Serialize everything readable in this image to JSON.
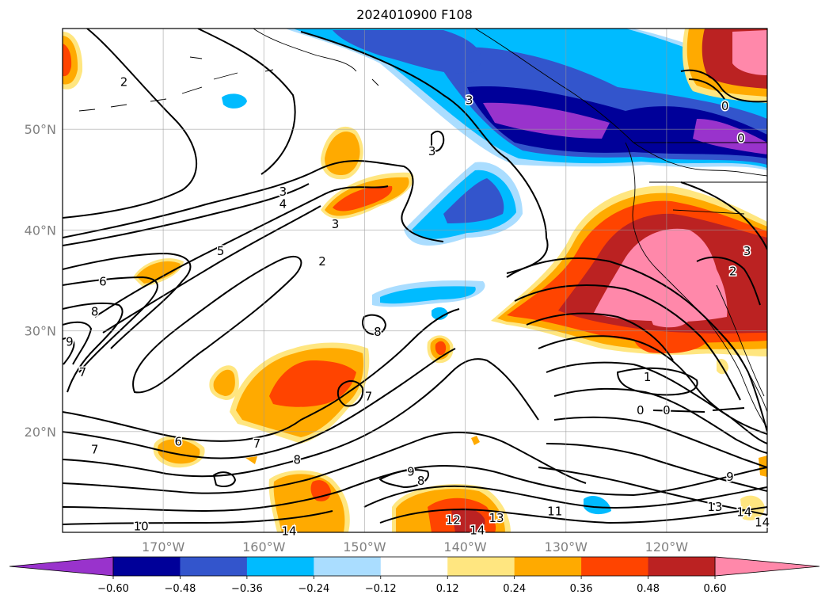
{
  "title": "2024010900 F108",
  "map": {
    "lon_range": [
      -180,
      -110
    ],
    "lat_range": [
      10,
      60
    ],
    "gridlines": true,
    "lon_ticks": [
      {
        "value": -170,
        "label": "170°W"
      },
      {
        "value": -160,
        "label": "160°W"
      },
      {
        "value": -150,
        "label": "150°W"
      },
      {
        "value": -140,
        "label": "140°W"
      },
      {
        "value": -130,
        "label": "130°W"
      },
      {
        "value": -120,
        "label": "120°W"
      }
    ],
    "lat_ticks": [
      {
        "value": 20,
        "label": "20°N"
      },
      {
        "value": 30,
        "label": "30°N"
      },
      {
        "value": 40,
        "label": "40°N"
      },
      {
        "value": 50,
        "label": "50°N"
      }
    ]
  },
  "colorbar": {
    "extend": "both",
    "levels": [
      -0.6,
      -0.48,
      -0.36,
      -0.24,
      -0.12,
      0.12,
      0.24,
      0.36,
      0.48,
      0.6
    ],
    "tick_labels": [
      "−0.60",
      "−0.48",
      "−0.36",
      "−0.24",
      "−0.12",
      "0.12",
      "0.24",
      "0.36",
      "0.48",
      "0.60"
    ],
    "colors": [
      "#9933cc",
      "#000099",
      "#3355cc",
      "#00bbff",
      "#aaddff",
      "#ffffff",
      "#ffe680",
      "#ffaa00",
      "#ff4400",
      "#bb2222",
      "#ff88aa"
    ]
  },
  "contour_labels": [
    {
      "text": "2",
      "lon": -173.9,
      "lat": 54.7
    },
    {
      "text": "3",
      "lon": -158.1,
      "lat": 43.8
    },
    {
      "text": "4",
      "lon": -158.1,
      "lat": 42.6
    },
    {
      "text": "3",
      "lon": -152.9,
      "lat": 40.6
    },
    {
      "text": "3",
      "lon": -143.3,
      "lat": 47.8
    },
    {
      "text": "3",
      "lon": -139.6,
      "lat": 52.9
    },
    {
      "text": "2",
      "lon": -154.2,
      "lat": 36.9
    },
    {
      "text": "5",
      "lon": -164.3,
      "lat": 37.9
    },
    {
      "text": "6",
      "lon": -176.0,
      "lat": 34.9
    },
    {
      "text": "8",
      "lon": -176.8,
      "lat": 31.9
    },
    {
      "text": "9",
      "lon": -179.3,
      "lat": 28.9
    },
    {
      "text": "7",
      "lon": -178.0,
      "lat": 25.9
    },
    {
      "text": "8",
      "lon": -148.7,
      "lat": 29.9
    },
    {
      "text": "7",
      "lon": -149.6,
      "lat": 23.5
    },
    {
      "text": "7",
      "lon": -160.7,
      "lat": 18.8
    },
    {
      "text": "6",
      "lon": -168.5,
      "lat": 19.0
    },
    {
      "text": "7",
      "lon": -176.8,
      "lat": 18.2
    },
    {
      "text": "8",
      "lon": -156.7,
      "lat": 17.2
    },
    {
      "text": "9",
      "lon": -145.4,
      "lat": 16.0
    },
    {
      "text": "8",
      "lon": -144.4,
      "lat": 15.1
    },
    {
      "text": "10",
      "lon": -172.2,
      "lat": 10.6
    },
    {
      "text": "12",
      "lon": -141.2,
      "lat": 11.2
    },
    {
      "text": "13",
      "lon": -136.9,
      "lat": 11.4
    },
    {
      "text": "14",
      "lon": -138.8,
      "lat": 10.2
    },
    {
      "text": "14",
      "lon": -157.5,
      "lat": 10.1
    },
    {
      "text": "11",
      "lon": -131.1,
      "lat": 12.1
    },
    {
      "text": "1",
      "lon": -121.9,
      "lat": 25.4
    },
    {
      "text": "0",
      "lon": -122.6,
      "lat": 22.1
    },
    {
      "text": "0",
      "lon": -120.0,
      "lat": 22.1
    },
    {
      "text": "0",
      "lon": -114.2,
      "lat": 52.3
    },
    {
      "text": "0",
      "lon": -112.6,
      "lat": 49.1
    },
    {
      "text": "3",
      "lon": -112.0,
      "lat": 37.9
    },
    {
      "text": "2",
      "lon": -113.4,
      "lat": 35.9
    },
    {
      "text": "9",
      "lon": -113.7,
      "lat": 15.5
    },
    {
      "text": "13",
      "lon": -115.2,
      "lat": 12.5
    },
    {
      "text": "14",
      "lon": -112.3,
      "lat": 12.0
    },
    {
      "text": "14",
      "lon": -110.5,
      "lat": 11.0
    }
  ]
}
